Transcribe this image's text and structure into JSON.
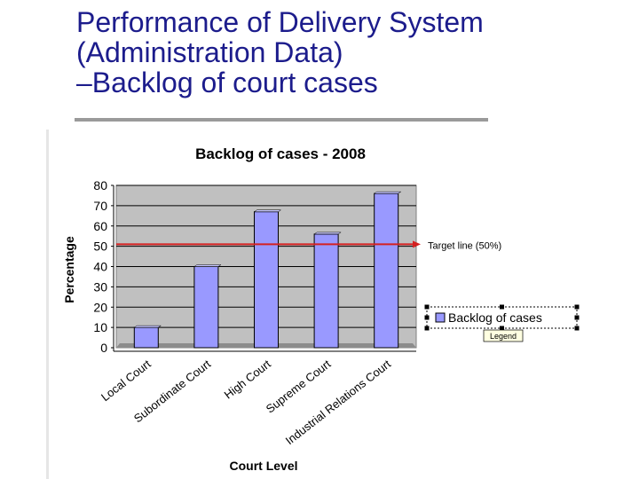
{
  "slide": {
    "title_lines": [
      "Performance of Delivery System",
      "(Administration Data)",
      "–Backlog of court cases"
    ]
  },
  "colors": {
    "title": "#1c1c8c",
    "bar_fill": "#9999ff",
    "plot_bg": "#c0c0c0",
    "target_line": "#d42020"
  },
  "chart_data": {
    "type": "bar",
    "title": "Backlog of cases - 2008",
    "xlabel": "Court Level",
    "ylabel": "Percentage",
    "categories": [
      "Local Court",
      "Subordinate Court",
      "High Court",
      "Supreme Court",
      "Industrial Relations Court"
    ],
    "series": [
      {
        "name": "Backlog of cases",
        "values": [
          10,
          40,
          67,
          56,
          76
        ]
      }
    ],
    "ylim": [
      0,
      80
    ],
    "yticks": [
      0,
      10,
      20,
      30,
      40,
      50,
      60,
      70,
      80
    ],
    "grid": true,
    "legend": "right",
    "legend_tooltip": "Legend",
    "annotations": [
      {
        "text": "Target line (50%)",
        "y": 51
      }
    ]
  }
}
